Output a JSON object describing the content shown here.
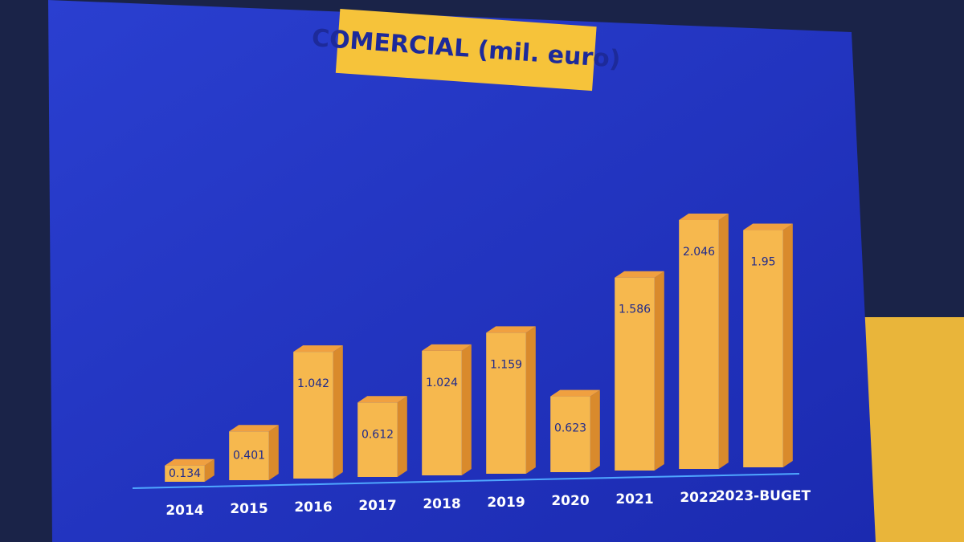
{
  "chart_data": {
    "type": "bar3d",
    "title": "COMERCIAL (mil. euro)",
    "categories": [
      "2014",
      "2015",
      "2016",
      "2017",
      "2018",
      "2019",
      "2020",
      "2021",
      "2022",
      "2023-BUGET"
    ],
    "values": [
      0.134,
      0.401,
      1.042,
      0.612,
      1.024,
      1.159,
      0.623,
      1.586,
      2.046,
      1.95
    ],
    "color": "#f6b84e"
  }
}
